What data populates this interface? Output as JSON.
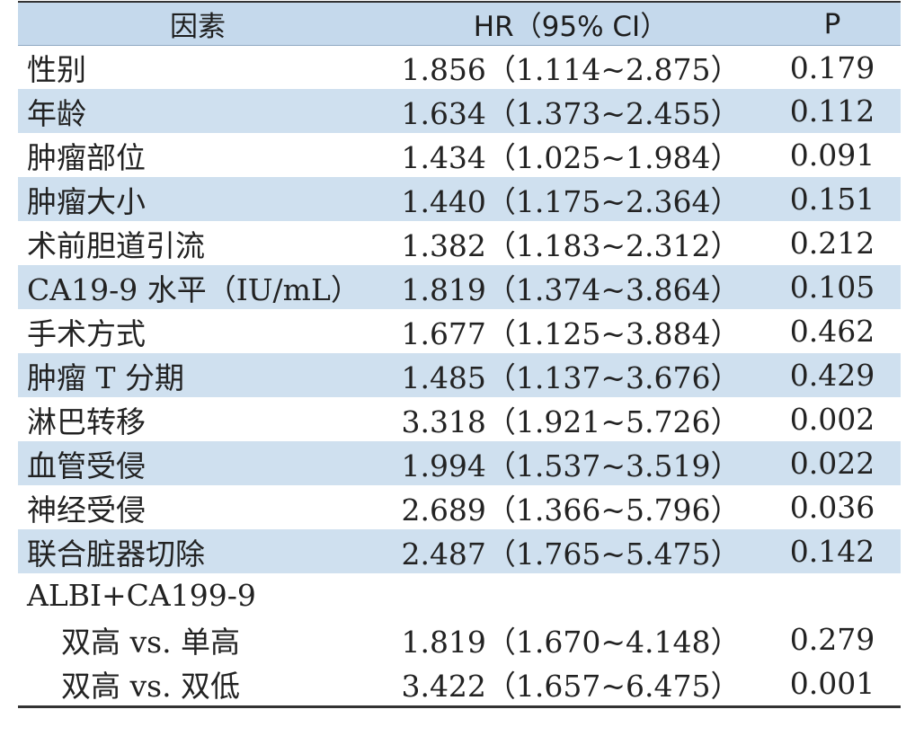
{
  "table": {
    "headers": {
      "factor": "因素",
      "hr": "HR（95% CI）",
      "p": "P"
    },
    "rows": [
      {
        "factor": "性别",
        "hr": "1.856（1.114~2.875）",
        "p": "0.179",
        "shaded": false
      },
      {
        "factor": "年龄",
        "hr": "1.634（1.373~2.455）",
        "p": "0.112",
        "shaded": true
      },
      {
        "factor": "肿瘤部位",
        "hr": "1.434（1.025~1.984）",
        "p": "0.091",
        "shaded": false
      },
      {
        "factor": "肿瘤大小",
        "hr": "1.440（1.175~2.364）",
        "p": "0.151",
        "shaded": true
      },
      {
        "factor": "术前胆道引流",
        "hr": "1.382（1.183~2.312）",
        "p": "0.212",
        "shaded": false
      },
      {
        "factor": "CA19-9 水平（IU/mL）",
        "hr": "1.819（1.374~3.864）",
        "p": "0.105",
        "shaded": true
      },
      {
        "factor": "手术方式",
        "hr": "1.677（1.125~3.884）",
        "p": "0.462",
        "shaded": false
      },
      {
        "factor": "肿瘤 T 分期",
        "hr": "1.485（1.137~3.676）",
        "p": "0.429",
        "shaded": true
      },
      {
        "factor": "淋巴转移",
        "hr": "3.318（1.921~5.726）",
        "p": "0.002",
        "shaded": false
      },
      {
        "factor": "血管受侵",
        "hr": "1.994（1.537~3.519）",
        "p": "0.022",
        "shaded": true
      },
      {
        "factor": "神经受侵",
        "hr": "2.689（1.366~5.796）",
        "p": "0.036",
        "shaded": false
      },
      {
        "factor": "联合脏器切除",
        "hr": "2.487（1.765~5.475）",
        "p": "0.142",
        "shaded": true
      },
      {
        "factor": "ALBI+CA199-9",
        "hr": "",
        "p": "",
        "shaded": false
      },
      {
        "factor": "双高 vs. 单高",
        "hr": "1.819（1.670~4.148）",
        "p": "0.279",
        "shaded": false,
        "indent": true
      },
      {
        "factor": "双高 vs. 双低",
        "hr": "3.422（1.657~6.475）",
        "p": "0.001",
        "shaded": false,
        "indent": true
      }
    ]
  },
  "colors": {
    "header_bg": "#c5d9ec",
    "shaded_bg": "#cfe0ef",
    "rule": "#333333"
  }
}
